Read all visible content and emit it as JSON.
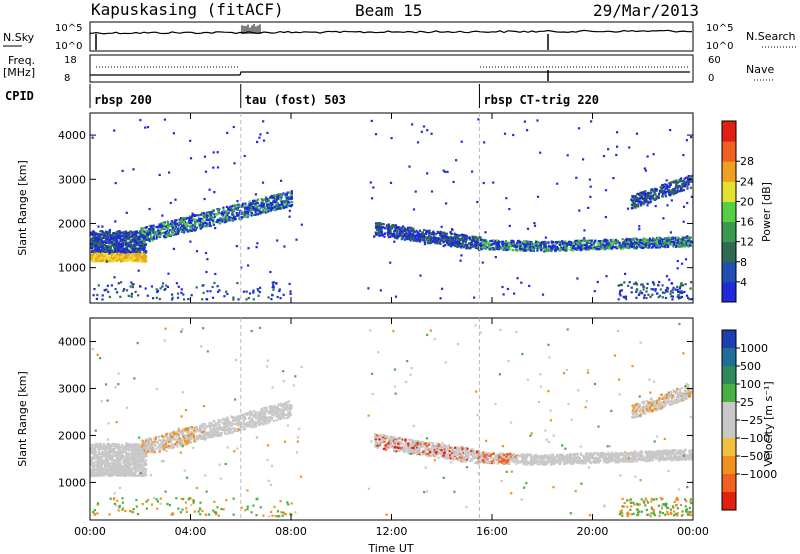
{
  "header": {
    "station": "Kapuskasing (fitACF)",
    "beam": "Beam 15",
    "date": "29/Mar/2013"
  },
  "side_labels": {
    "nsky": "N.Sky",
    "nsearch": "N.Search",
    "freq": "Freq.",
    "freq_unit": "[MHz]",
    "nave": "Nave",
    "cpid": "CPID"
  },
  "noise_panel": {
    "left_ticks": [
      "10^5",
      "10^0"
    ],
    "right_ticks": [
      "10^5",
      "10^0"
    ]
  },
  "freq_panel": {
    "left_ticks": [
      "18",
      "8"
    ],
    "right_ticks": [
      "60",
      "0"
    ]
  },
  "cpid_segments": [
    {
      "label": "rbsp 200",
      "start_hr": 0.0
    },
    {
      "label": "tau (fost) 503",
      "start_hr": 6.0
    },
    {
      "label": "rbsp CT-trig 220",
      "start_hr": 15.5
    }
  ],
  "chart_data": [
    {
      "type": "heatmap",
      "name": "power",
      "ylabel": "Slant Range [km]",
      "xlabel": "Time UT",
      "xlim": [
        0,
        24
      ],
      "ylim": [
        200,
        4500
      ],
      "yticks": [
        "1000",
        "2000",
        "3000",
        "4000"
      ],
      "colorbar_label": "Power [dB]",
      "colorbar_ticks": [
        "4",
        "8",
        "12",
        "16",
        "20",
        "24",
        "28"
      ],
      "colorbar_colors": [
        "#1f2bd8",
        "#1f4fb0",
        "#2d6a50",
        "#3a9a50",
        "#55d040",
        "#e6e030",
        "#f0a020",
        "#f06020",
        "#e02010"
      ]
    },
    {
      "type": "heatmap",
      "name": "velocity",
      "ylabel": "Slant Range [km]",
      "xlabel": "Time UT",
      "xlim": [
        0,
        24
      ],
      "ylim": [
        200,
        4500
      ],
      "yticks": [
        "1000",
        "2000",
        "3000",
        "4000"
      ],
      "colorbar_label": "Velocity [m s⁻¹]",
      "colorbar_ticks": [
        "1000",
        "500",
        "100",
        "25",
        "−25",
        "−100",
        "−500",
        "−1000"
      ],
      "colorbar_colors": [
        "#1c3fb0",
        "#1f6e9a",
        "#2e8a5a",
        "#48b040",
        "#c8c8c8",
        "#c8c8c8",
        "#f0c040",
        "#f09020",
        "#f06020",
        "#e02010"
      ]
    }
  ],
  "xticks": [
    "00:00",
    "04:00",
    "08:00",
    "12:00",
    "16:00",
    "20:00",
    "00:00"
  ],
  "xlabel": "Time UT"
}
